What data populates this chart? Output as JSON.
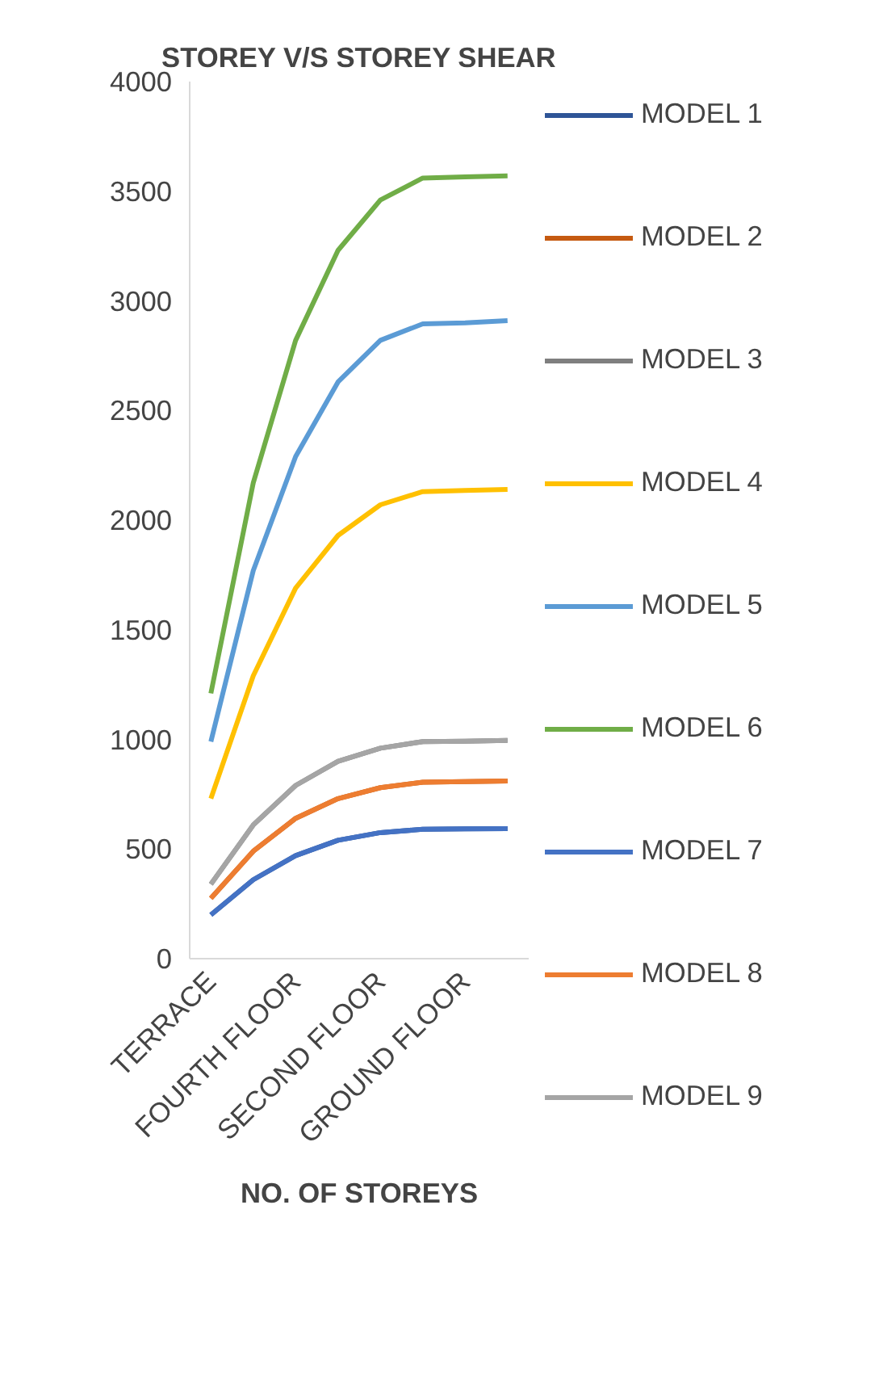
{
  "chart_data": {
    "type": "line",
    "title": "STOREY V/S STOREY SHEAR",
    "xlabel": "NO. OF STOREYS",
    "categories": [
      "TERRACE",
      null,
      "FOURTH FLOOR",
      null,
      "SECOND FLOOR",
      null,
      "GROUND FLOOR",
      null
    ],
    "ylim": [
      0,
      4000
    ],
    "yticks": [
      0,
      500,
      1000,
      1500,
      2000,
      2500,
      3000,
      3500,
      4000
    ],
    "grid": false,
    "legend": "right",
    "marker": "none",
    "line_style": "solid",
    "series": [
      {
        "name": "MODEL 1",
        "color": "#2f5597",
        "values": [
          200,
          360,
          470,
          540,
          575,
          590,
          592,
          593
        ]
      },
      {
        "name": "MODEL 2",
        "color": "#c55a11",
        "values": [
          275,
          490,
          640,
          730,
          780,
          805,
          808,
          810
        ]
      },
      {
        "name": "MODEL 3",
        "color": "#7f7f7f",
        "values": [
          340,
          610,
          790,
          900,
          960,
          990,
          992,
          995
        ]
      },
      {
        "name": "MODEL 4",
        "color": "#ffc000",
        "values": [
          730,
          1290,
          1690,
          1930,
          2070,
          2130,
          2135,
          2140
        ]
      },
      {
        "name": "MODEL 5",
        "color": "#5b9bd5",
        "values": [
          990,
          1770,
          2290,
          2630,
          2820,
          2895,
          2900,
          2910
        ]
      },
      {
        "name": "MODEL 6",
        "color": "#70ad47",
        "values": [
          1210,
          2170,
          2820,
          3230,
          3460,
          3560,
          3565,
          3570
        ]
      },
      {
        "name": "MODEL 7",
        "color": "#4472c4",
        "values": [
          200,
          360,
          470,
          540,
          575,
          590,
          592,
          593
        ]
      },
      {
        "name": "MODEL 8",
        "color": "#ed7d31",
        "values": [
          275,
          490,
          640,
          730,
          780,
          805,
          808,
          810
        ]
      },
      {
        "name": "MODEL 9",
        "color": "#a5a5a5",
        "values": [
          340,
          610,
          790,
          900,
          960,
          990,
          992,
          995
        ]
      }
    ]
  }
}
